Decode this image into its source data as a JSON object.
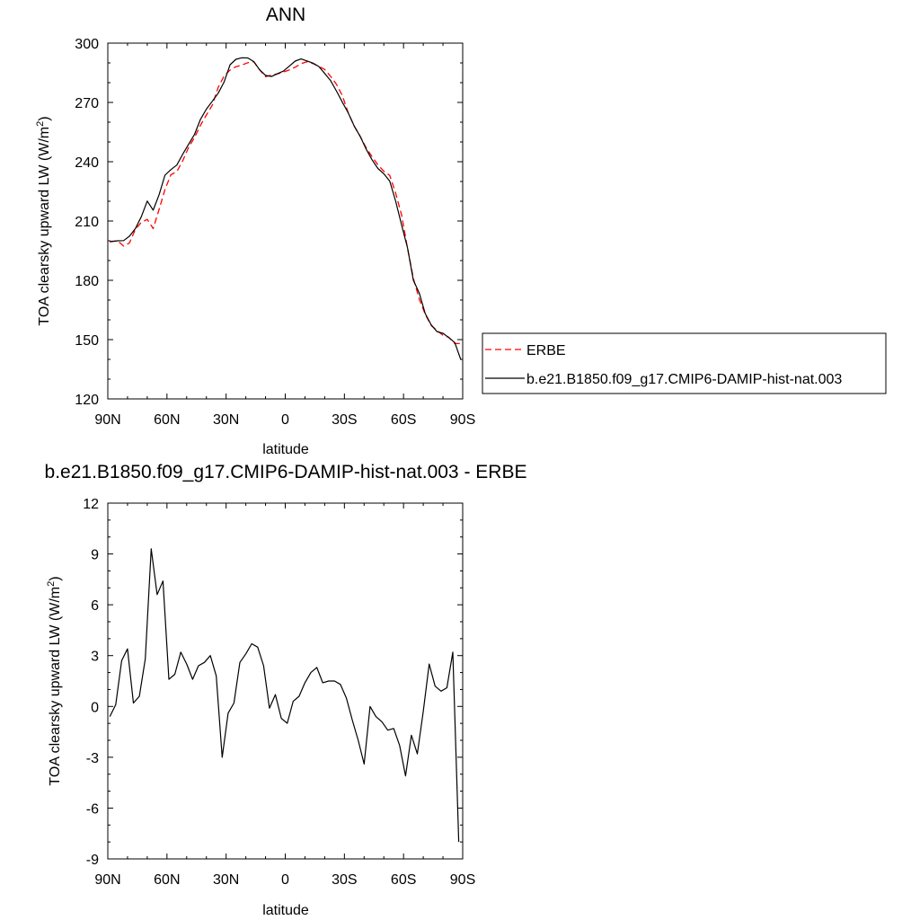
{
  "chart_data": [
    {
      "type": "line",
      "title": "ANN",
      "xlabel": "latitude",
      "ylabel": "TOA clearsky upward LW (W/m",
      "ylabel_sup": "2",
      "ylabel_tail": ")",
      "xlim": [
        90,
        -90
      ],
      "ylim": [
        120,
        300
      ],
      "x_ticks": [
        90,
        60,
        30,
        0,
        -30,
        -60,
        -90
      ],
      "x_tick_labels": [
        "90N",
        "60N",
        "30N",
        "0",
        "30S",
        "60S",
        "90S"
      ],
      "y_ticks": [
        120,
        150,
        180,
        210,
        240,
        270,
        300
      ],
      "y_tick_labels": [
        "120",
        "150",
        "180",
        "210",
        "240",
        "270",
        "300"
      ],
      "legend_position": "right",
      "x": [
        89,
        85,
        82,
        79,
        76,
        73,
        70,
        67,
        64,
        61,
        58,
        55,
        52,
        49,
        46,
        43,
        40,
        37,
        34,
        31,
        28,
        25,
        22,
        19,
        16,
        13,
        10,
        7,
        4,
        1,
        -2,
        -5,
        -8,
        -11,
        -14,
        -17,
        -20,
        -23,
        -26,
        -29,
        -32,
        -35,
        -38,
        -41,
        -44,
        -47,
        -50,
        -53,
        -56,
        -59,
        -62,
        -65,
        -68,
        -71,
        -74,
        -77,
        -80,
        -83,
        -86,
        -89
      ],
      "series": [
        {
          "name": "ERBE",
          "color": "#ff0000",
          "dash": "dashed",
          "values": [
            199.7,
            199.9,
            197.3,
            198.9,
            205.8,
            209.3,
            210.8,
            206.2,
            215.9,
            225.9,
            233.4,
            235.0,
            240.5,
            247.3,
            252.3,
            258.4,
            263.6,
            268.6,
            277.7,
            283.4,
            286.4,
            288.1,
            288.9,
            290.1,
            290.7,
            286.5,
            283.0,
            283.8,
            284.4,
            285.3,
            286.4,
            287.8,
            289.6,
            290.6,
            289.7,
            288.3,
            286.7,
            283.2,
            279.1,
            273.4,
            264.6,
            258.0,
            252.8,
            247.1,
            242.6,
            238.4,
            235.2,
            233.1,
            224.1,
            213.0,
            196.2,
            181.0,
            170.4,
            162.8,
            157.2,
            154.6,
            152.2,
            151.2,
            148.0,
            148.0
          ]
        },
        {
          "name": "b.e21.B1850.f09_g17.CMIP6-DAMIP-hist-nat.003",
          "color": "#000000",
          "dash": "solid",
          "values": [
            199.5,
            200.0,
            200.1,
            202.3,
            206.2,
            212.2,
            220.1,
            215.5,
            223.3,
            233.2,
            236.0,
            238.3,
            243.8,
            248.9,
            253.9,
            261.4,
            266.6,
            270.6,
            274.7,
            280.4,
            289.1,
            291.8,
            292.6,
            292.5,
            290.7,
            286.5,
            283.7,
            283.1,
            284.5,
            285.8,
            288.3,
            290.9,
            292.0,
            291.0,
            289.9,
            288.2,
            284.7,
            281.0,
            275.7,
            270.1,
            264.6,
            258.0,
            252.8,
            246.4,
            241.0,
            236.6,
            233.9,
            230.2,
            220.0,
            208.0,
            196.4,
            180.0,
            173.5,
            163.2,
            157.5,
            154.0,
            153.2,
            151.0,
            148.5,
            140.0
          ]
        }
      ]
    },
    {
      "type": "line",
      "title": "b.e21.B1850.f09_g17.CMIP6-DAMIP-hist-nat.003 - ERBE",
      "xlabel": "latitude",
      "ylabel": "TOA clearsky upward LW (W/m",
      "ylabel_sup": "2",
      "ylabel_tail": ")",
      "xlim": [
        90,
        -90
      ],
      "ylim": [
        -9,
        12
      ],
      "x_ticks": [
        90,
        60,
        30,
        0,
        -30,
        -60,
        -90
      ],
      "x_tick_labels": [
        "90N",
        "60N",
        "30N",
        "0",
        "30S",
        "60S",
        "90S"
      ],
      "y_ticks": [
        -9,
        -6,
        -3,
        0,
        3,
        6,
        9,
        12
      ],
      "y_tick_labels": [
        "-9",
        "-6",
        "-3",
        "0",
        "3",
        "6",
        "9",
        "12"
      ],
      "x": [
        89,
        86,
        83,
        80,
        77,
        74,
        71,
        68,
        65,
        62,
        59,
        56,
        53,
        50,
        47,
        44,
        41,
        38,
        35,
        32,
        29,
        26,
        23,
        20,
        17,
        14,
        11,
        8,
        5,
        2,
        -1,
        -4,
        -7,
        -10,
        -13,
        -16,
        -19,
        -22,
        -25,
        -28,
        -31,
        -34,
        -37,
        -40,
        -43,
        -46,
        -49,
        -52,
        -55,
        -58,
        -61,
        -64,
        -67,
        -70,
        -73,
        -76,
        -79,
        -82,
        -85,
        -88
      ],
      "series": [
        {
          "name": "",
          "color": "#000000",
          "dash": "solid",
          "values": [
            -0.6,
            0.1,
            2.7,
            3.4,
            0.2,
            0.6,
            2.8,
            9.3,
            6.6,
            7.4,
            1.6,
            1.9,
            3.2,
            2.5,
            1.6,
            2.4,
            2.6,
            3.0,
            1.8,
            -3.0,
            -0.4,
            0.2,
            2.6,
            3.1,
            3.7,
            3.5,
            2.4,
            -0.1,
            0.7,
            -0.7,
            -1.0,
            0.3,
            0.6,
            1.4,
            2.0,
            2.3,
            1.4,
            1.5,
            1.5,
            1.3,
            0.5,
            -0.8,
            -2.0,
            -3.4,
            0.0,
            -0.6,
            -0.9,
            -1.4,
            -1.3,
            -2.3,
            -4.1,
            -1.7,
            -2.8,
            -0.3,
            2.5,
            1.2,
            0.9,
            1.1,
            3.2,
            -8.0
          ]
        }
      ]
    }
  ]
}
